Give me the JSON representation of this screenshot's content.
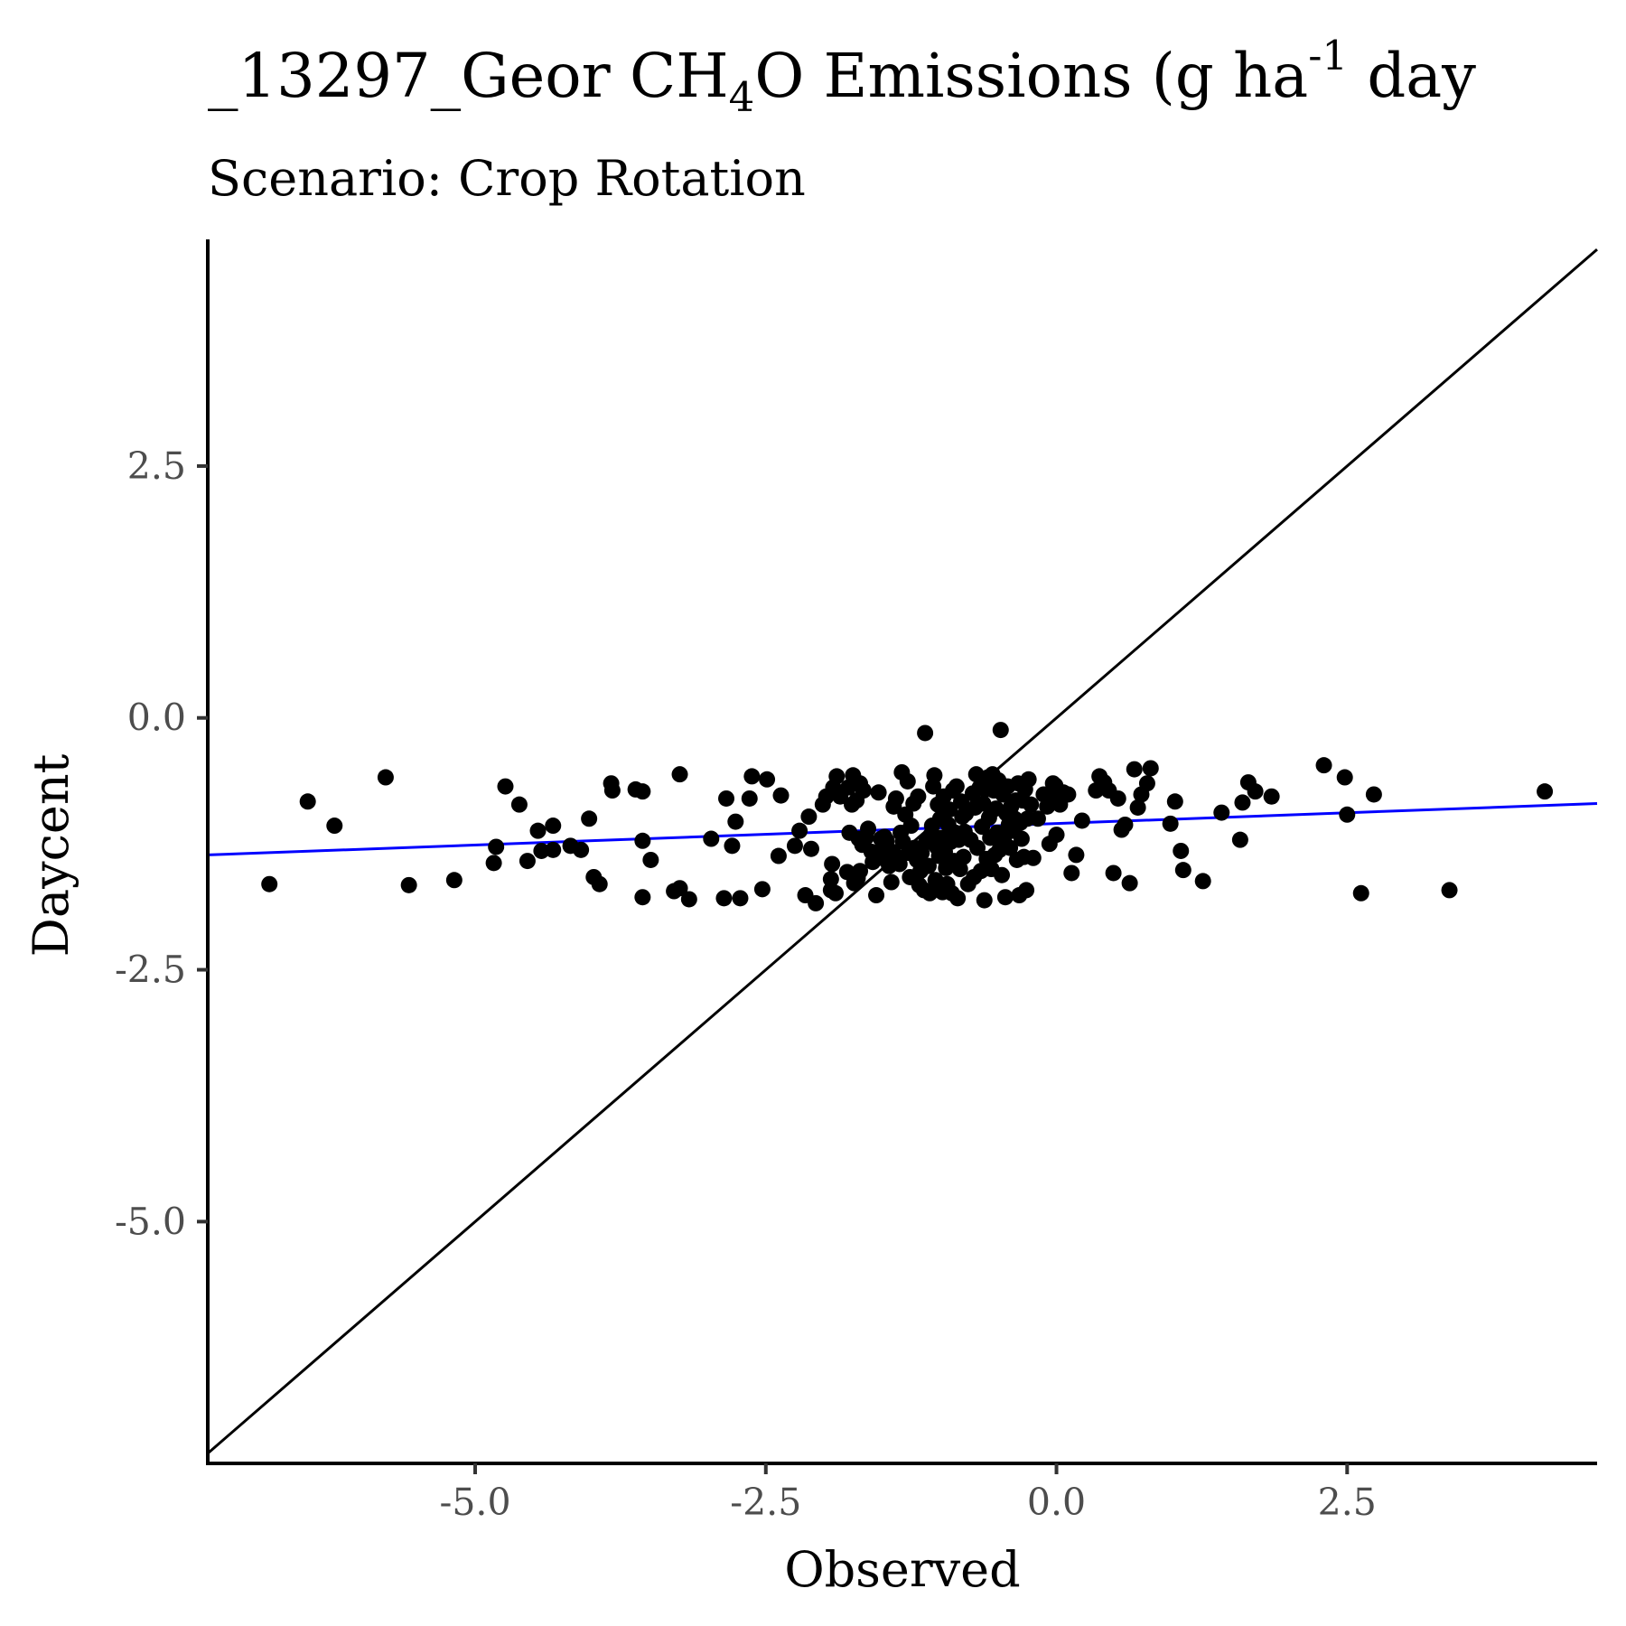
{
  "chart_data": {
    "type": "scatter",
    "title": {
      "prefix": "_13297_Geor CH",
      "sub": "4",
      "mid": "O Emissions (g ha",
      "sup": "-1",
      "suffix": " day"
    },
    "subtitle": "Scenario: Crop Rotation",
    "xlabel": "Observed",
    "ylabel": "Daycent",
    "xlim": [
      -7.3,
      4.65
    ],
    "ylim": [
      -7.4,
      4.75
    ],
    "xticks": [
      -5.0,
      -2.5,
      0.0,
      2.5
    ],
    "yticks": [
      2.5,
      0.0,
      -2.5,
      -5.0
    ],
    "xtick_labels": [
      "-5.0",
      "-2.5",
      "0.0",
      "2.5"
    ],
    "ytick_labels": [
      "2.5",
      "0.0",
      "-2.5",
      "-5.0"
    ],
    "grid": false,
    "identity_line": {
      "x": [
        -7.3,
        4.65
      ],
      "y": [
        -7.3,
        4.65
      ],
      "color": "#000000"
    },
    "fit_line": {
      "x": [
        -7.3,
        4.65
      ],
      "y": [
        -1.36,
        -0.85
      ],
      "color": "#0000ff"
    },
    "point_color": "#000000",
    "points": [
      [
        -6.77,
        -1.65
      ],
      [
        -6.44,
        -0.83
      ],
      [
        -6.21,
        -1.07
      ],
      [
        -5.77,
        -0.59
      ],
      [
        -5.57,
        -1.66
      ],
      [
        -5.18,
        -1.61
      ],
      [
        -4.84,
        -1.44
      ],
      [
        -4.82,
        -1.28
      ],
      [
        -4.74,
        -0.68
      ],
      [
        -4.62,
        -0.86
      ],
      [
        -4.55,
        -1.42
      ],
      [
        -4.46,
        -1.12
      ],
      [
        -4.43,
        -1.32
      ],
      [
        -4.33,
        -1.07
      ],
      [
        -4.33,
        -1.31
      ],
      [
        -4.18,
        -1.27
      ],
      [
        -4.09,
        -1.31
      ],
      [
        -4.02,
        -1.0
      ],
      [
        -3.98,
        -1.58
      ],
      [
        -3.93,
        -1.65
      ],
      [
        -3.83,
        -0.65
      ],
      [
        -3.82,
        -0.72
      ],
      [
        -3.62,
        -0.71
      ],
      [
        -3.56,
        -0.73
      ],
      [
        -3.56,
        -1.22
      ],
      [
        -3.56,
        -1.78
      ],
      [
        -3.49,
        -1.41
      ],
      [
        -3.29,
        -1.72
      ],
      [
        -3.24,
        -0.56
      ],
      [
        -3.24,
        -1.69
      ],
      [
        -3.16,
        -1.8
      ],
      [
        -2.97,
        -1.2
      ],
      [
        -2.86,
        -1.79
      ],
      [
        -2.84,
        -0.8
      ],
      [
        -2.79,
        -1.27
      ],
      [
        -2.76,
        -1.03
      ],
      [
        -2.72,
        -1.79
      ],
      [
        -2.64,
        -0.8
      ],
      [
        -2.62,
        -0.58
      ],
      [
        -2.53,
        -1.7
      ],
      [
        -2.49,
        -0.61
      ],
      [
        -2.39,
        -1.37
      ],
      [
        -2.37,
        -0.77
      ],
      [
        -2.25,
        -1.27
      ],
      [
        -2.21,
        -1.12
      ],
      [
        -2.16,
        -1.76
      ],
      [
        -2.13,
        -0.98
      ],
      [
        -2.11,
        -1.3
      ],
      [
        -2.07,
        -1.84
      ],
      [
        -2.01,
        -0.86
      ],
      [
        -1.98,
        -0.78
      ],
      [
        -1.94,
        -1.6
      ],
      [
        -1.94,
        -1.71
      ],
      [
        -1.93,
        -1.45
      ],
      [
        -1.92,
        -0.69
      ],
      [
        -1.9,
        -1.74
      ],
      [
        -1.89,
        -0.58
      ],
      [
        -1.86,
        -0.78
      ],
      [
        -1.8,
        -1.53
      ],
      [
        -1.79,
        -0.69
      ],
      [
        -1.78,
        -1.14
      ],
      [
        -1.76,
        -0.86
      ],
      [
        -1.75,
        -0.57
      ],
      [
        -1.74,
        -1.64
      ],
      [
        -1.72,
        -0.82
      ],
      [
        -1.71,
        -1.59
      ],
      [
        -1.7,
        -1.2
      ],
      [
        -1.69,
        -0.65
      ],
      [
        -1.69,
        -1.52
      ],
      [
        -1.67,
        -1.26
      ],
      [
        -1.66,
        -0.72
      ],
      [
        -1.64,
        -1.19
      ],
      [
        -1.62,
        -1.1
      ],
      [
        -1.59,
        -1.33
      ],
      [
        -1.58,
        -1.43
      ],
      [
        -1.55,
        -1.76
      ],
      [
        -1.53,
        -0.74
      ],
      [
        -1.52,
        -1.32
      ],
      [
        -1.51,
        -1.2
      ],
      [
        -1.5,
        -1.39
      ],
      [
        -1.48,
        -1.18
      ],
      [
        -1.46,
        -1.22
      ],
      [
        -1.44,
        -1.47
      ],
      [
        -1.42,
        -1.63
      ],
      [
        -1.41,
        -1.33
      ],
      [
        -1.4,
        -0.88
      ],
      [
        -1.38,
        -0.8
      ],
      [
        -1.37,
        -1.38
      ],
      [
        -1.35,
        -1.45
      ],
      [
        -1.34,
        -1.14
      ],
      [
        -1.33,
        -0.54
      ],
      [
        -1.32,
        -1.23
      ],
      [
        -1.3,
        -0.96
      ],
      [
        -1.28,
        -0.63
      ],
      [
        -1.27,
        -1.34
      ],
      [
        -1.26,
        -1.58
      ],
      [
        -1.25,
        -1.07
      ],
      [
        -1.23,
        -0.85
      ],
      [
        -1.22,
        -1.29
      ],
      [
        -1.2,
        -1.41
      ],
      [
        -1.19,
        -0.78
      ],
      [
        -1.18,
        -1.66
      ],
      [
        -1.17,
        -1.52
      ],
      [
        -1.16,
        -1.34
      ],
      [
        -1.14,
        -1.71
      ],
      [
        -1.13,
        -0.15
      ],
      [
        -1.12,
        -1.23
      ],
      [
        -1.1,
        -1.47
      ],
      [
        -1.09,
        -1.74
      ],
      [
        -1.08,
        -1.16
      ],
      [
        -1.07,
        -1.07
      ],
      [
        -1.06,
        -0.68
      ],
      [
        -1.05,
        -0.57
      ],
      [
        -1.04,
        -1.61
      ],
      [
        -1.03,
        -1.28
      ],
      [
        -1.02,
        -0.86
      ],
      [
        -1.01,
        -1.37
      ],
      [
        -1.0,
        -1.0
      ],
      [
        -0.99,
        -1.19
      ],
      [
        -0.98,
        -1.73
      ],
      [
        -0.97,
        -0.78
      ],
      [
        -0.96,
        -1.33
      ],
      [
        -0.95,
        -1.49
      ],
      [
        -0.94,
        -1.65
      ],
      [
        -0.93,
        -1.06
      ],
      [
        -0.92,
        -0.91
      ],
      [
        -0.91,
        -1.23
      ],
      [
        -0.9,
        -1.74
      ],
      [
        -0.89,
        -0.72
      ],
      [
        -0.88,
        -1.42
      ],
      [
        -0.87,
        -1.14
      ],
      [
        -0.86,
        -0.68
      ],
      [
        -0.85,
        -1.79
      ],
      [
        -0.84,
        -1.21
      ],
      [
        -0.83,
        -1.5
      ],
      [
        -0.82,
        -0.83
      ],
      [
        -0.81,
        -0.98
      ],
      [
        -0.8,
        -1.38
      ],
      [
        -0.79,
        -1.13
      ],
      [
        -0.78,
        -0.95
      ],
      [
        -0.76,
        -1.65
      ],
      [
        -0.74,
        -1.21
      ],
      [
        -0.72,
        -0.75
      ],
      [
        -0.71,
        -1.58
      ],
      [
        -0.7,
        -0.89
      ],
      [
        -0.69,
        -0.56
      ],
      [
        -0.68,
        -1.29
      ],
      [
        -0.66,
        -0.69
      ],
      [
        -0.65,
        -1.52
      ],
      [
        -0.64,
        -1.08
      ],
      [
        -0.63,
        -0.85
      ],
      [
        -0.62,
        -1.81
      ],
      [
        -0.61,
        -0.71
      ],
      [
        -0.6,
        -1.4
      ],
      [
        -0.59,
        -0.59
      ],
      [
        -0.58,
        -0.99
      ],
      [
        -0.57,
        -1.19
      ],
      [
        -0.56,
        -1.5
      ],
      [
        -0.55,
        -0.56
      ],
      [
        -0.54,
        -0.72
      ],
      [
        -0.53,
        -1.36
      ],
      [
        -0.52,
        -0.9
      ],
      [
        -0.51,
        -1.14
      ],
      [
        -0.5,
        -0.62
      ],
      [
        -0.49,
        -1.31
      ],
      [
        -0.48,
        -0.12
      ],
      [
        -0.47,
        -1.56
      ],
      [
        -0.46,
        -0.76
      ],
      [
        -0.45,
        -1.23
      ],
      [
        -0.44,
        -1.78
      ],
      [
        -0.43,
        -0.95
      ],
      [
        -0.42,
        -0.68
      ],
      [
        -0.41,
        -1.06
      ],
      [
        -0.4,
        -1.29
      ],
      [
        -0.39,
        -0.88
      ],
      [
        -0.38,
        -1.12
      ],
      [
        -0.36,
        -1.0
      ],
      [
        -0.35,
        -0.82
      ],
      [
        -0.34,
        -1.41
      ],
      [
        -0.33,
        -0.65
      ],
      [
        -0.32,
        -1.76
      ],
      [
        -0.31,
        -1.04
      ],
      [
        -0.3,
        -1.2
      ],
      [
        -0.29,
        -0.82
      ],
      [
        -0.28,
        -1.38
      ],
      [
        -0.27,
        -0.71
      ],
      [
        -0.26,
        -1.71
      ],
      [
        -0.25,
        -1.0
      ],
      [
        -0.24,
        -0.61
      ],
      [
        -0.22,
        -0.86
      ],
      [
        -0.2,
        -1.39
      ],
      [
        -0.16,
        -1.0
      ],
      [
        -0.11,
        -0.76
      ],
      [
        -0.08,
        -0.88
      ],
      [
        -0.06,
        -1.25
      ],
      [
        -0.05,
        -0.79
      ],
      [
        -0.03,
        -0.65
      ],
      [
        -0.01,
        -0.67
      ],
      [
        0.0,
        -1.16
      ],
      [
        0.03,
        -0.86
      ],
      [
        0.06,
        -0.74
      ],
      [
        0.1,
        -0.76
      ],
      [
        0.13,
        -1.54
      ],
      [
        0.17,
        -1.36
      ],
      [
        0.22,
        -1.02
      ],
      [
        0.34,
        -0.72
      ],
      [
        0.37,
        -0.58
      ],
      [
        0.41,
        -0.64
      ],
      [
        0.45,
        -0.72
      ],
      [
        0.49,
        -1.54
      ],
      [
        0.53,
        -0.8
      ],
      [
        0.56,
        -1.11
      ],
      [
        0.59,
        -1.06
      ],
      [
        0.63,
        -1.64
      ],
      [
        0.67,
        -0.51
      ],
      [
        0.7,
        -0.89
      ],
      [
        0.73,
        -0.76
      ],
      [
        0.78,
        -0.65
      ],
      [
        0.81,
        -0.5
      ],
      [
        0.98,
        -1.05
      ],
      [
        1.02,
        -0.83
      ],
      [
        1.07,
        -1.32
      ],
      [
        1.09,
        -1.51
      ],
      [
        1.26,
        -1.62
      ],
      [
        1.42,
        -0.94
      ],
      [
        1.58,
        -1.21
      ],
      [
        1.6,
        -0.84
      ],
      [
        1.65,
        -0.64
      ],
      [
        1.71,
        -0.73
      ],
      [
        1.85,
        -0.78
      ],
      [
        2.3,
        -0.47
      ],
      [
        2.48,
        -0.59
      ],
      [
        2.5,
        -0.96
      ],
      [
        2.62,
        -1.74
      ],
      [
        2.73,
        -0.76
      ],
      [
        3.38,
        -1.71
      ],
      [
        4.2,
        -0.73
      ]
    ]
  }
}
